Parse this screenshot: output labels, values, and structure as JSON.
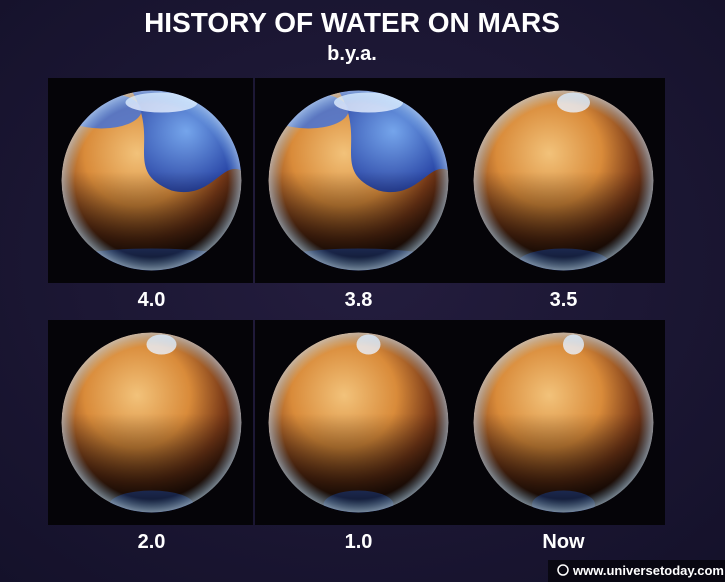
{
  "header": {
    "title": "HISTORY OF WATER ON MARS",
    "subtitle": "b.y.a."
  },
  "panels": [
    {
      "label": "4.0"
    },
    {
      "label": "3.8"
    },
    {
      "label": "3.5"
    },
    {
      "label": "2.0"
    },
    {
      "label": "1.0"
    },
    {
      "label": "Now"
    }
  ],
  "watermark": "www.universetoday.com"
}
